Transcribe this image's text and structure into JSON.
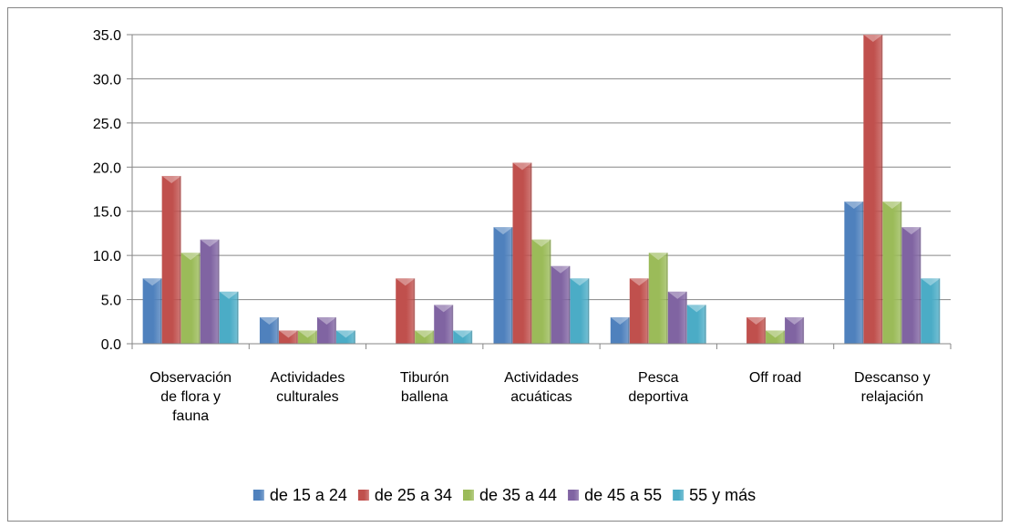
{
  "chart_data": {
    "type": "bar",
    "title": "",
    "xlabel": "",
    "ylabel": "",
    "ylim": [
      0,
      35
    ],
    "y_ticks": [
      "0.0",
      "5.0",
      "10.0",
      "15.0",
      "20.0",
      "25.0",
      "30.0",
      "35.0"
    ],
    "grid": true,
    "legend_position": "bottom",
    "categories": [
      [
        "Observación",
        "de flora y",
        "fauna"
      ],
      [
        "Actividades",
        "culturales"
      ],
      [
        "Tiburón",
        "ballena"
      ],
      [
        "Actividades",
        "acuáticas"
      ],
      [
        "Pesca",
        "deportiva"
      ],
      [
        "Off road"
      ],
      [
        "Descanso y",
        "relajación"
      ]
    ],
    "series": [
      {
        "name": "de 15 a 24",
        "color": "#4F81BD",
        "values": [
          7.4,
          3.0,
          0,
          13.2,
          3.0,
          0,
          16.1
        ]
      },
      {
        "name": "de 25 a 34",
        "color": "#C0504D",
        "values": [
          19.0,
          1.5,
          7.4,
          20.5,
          7.4,
          3.0,
          35.0
        ]
      },
      {
        "name": "de 35 a 44",
        "color": "#9BBB59",
        "values": [
          10.3,
          1.5,
          1.5,
          11.8,
          10.3,
          1.5,
          16.1
        ]
      },
      {
        "name": "de 45 a 55",
        "color": "#8064A2",
        "values": [
          11.8,
          3.0,
          4.4,
          8.8,
          5.9,
          3.0,
          13.2
        ]
      },
      {
        "name": "55 y más",
        "color": "#4BACC6",
        "values": [
          5.9,
          1.5,
          1.5,
          7.4,
          4.4,
          0,
          7.4
        ]
      }
    ]
  }
}
